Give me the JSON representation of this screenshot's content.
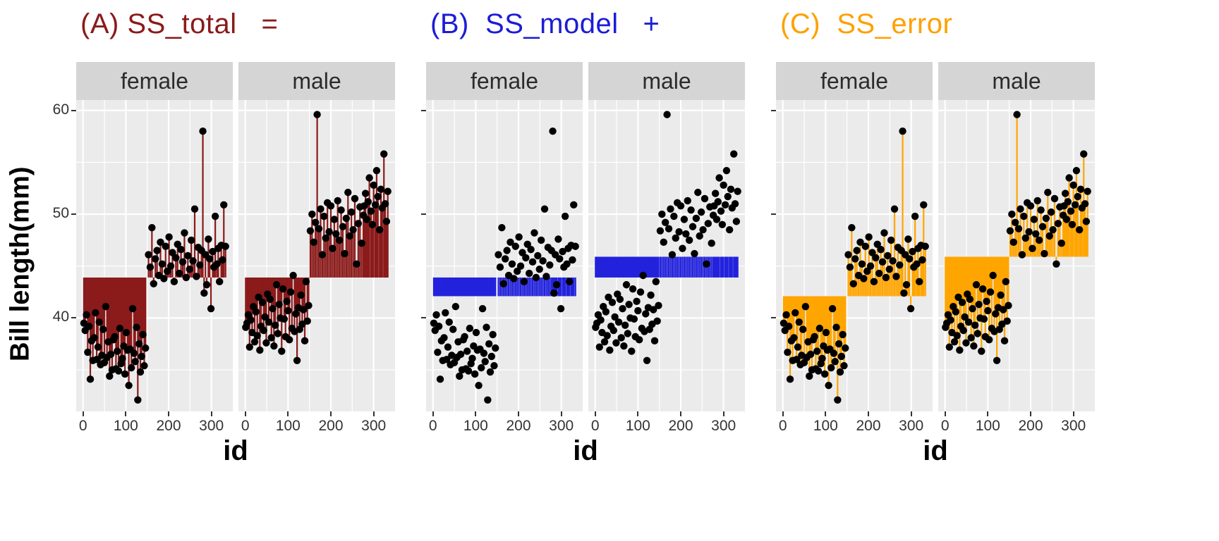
{
  "charts": [
    {
      "id": "A",
      "title": "(A) SS_total   =",
      "title_color": "#8B1A1A",
      "segment_color": "#8B1A1A",
      "baseline": "grand",
      "target": "point"
    },
    {
      "id": "B",
      "title": "(B)  SS_model   +",
      "title_color": "#1C1CD6",
      "segment_color": "#2222DD",
      "baseline": "grand",
      "target": "group"
    },
    {
      "id": "C",
      "title": "(C)  SS_error",
      "title_color": "#FFA000",
      "segment_color": "#FFA500",
      "baseline": "group",
      "target": "point"
    }
  ],
  "chart_data": {
    "type": "scatter",
    "title": "SS_total = SS_model + SS_error",
    "xlabel": "id",
    "ylabel": "Bill length(mm)",
    "facets": [
      "female",
      "male"
    ],
    "x_domain": [
      -16,
      350
    ],
    "y_domain": [
      31,
      61
    ],
    "x_ticks": [
      0,
      100,
      200,
      300
    ],
    "y_ticks": [
      60,
      50,
      40
    ],
    "x_minor": [
      50,
      150,
      250
    ],
    "y_minor": [
      35,
      45,
      55
    ],
    "grand_mean": 43.9,
    "group_means": {
      "female": 42.1,
      "male": 45.9
    },
    "legend": "none",
    "grid": true,
    "panel_background": "#EBEBEB",
    "gridline_color": "#FFFFFF",
    "point_color": "#000000",
    "points": {
      "female": [
        [
          2,
          39.5
        ],
        [
          5,
          38.8
        ],
        [
          8,
          40.3
        ],
        [
          11,
          36.7
        ],
        [
          14,
          39.2
        ],
        [
          17,
          34.1
        ],
        [
          20,
          37.8
        ],
        [
          23,
          35.9
        ],
        [
          26,
          38.1
        ],
        [
          29,
          40.5
        ],
        [
          32,
          36.0
        ],
        [
          35,
          37.2
        ],
        [
          38,
          39.6
        ],
        [
          41,
          35.5
        ],
        [
          44,
          36.4
        ],
        [
          47,
          38.9
        ],
        [
          50,
          35.7
        ],
        [
          53,
          41.1
        ],
        [
          56,
          36.2
        ],
        [
          59,
          37.7
        ],
        [
          62,
          34.4
        ],
        [
          65,
          36.5
        ],
        [
          68,
          35.0
        ],
        [
          71,
          37.9
        ],
        [
          74,
          38.2
        ],
        [
          77,
          35.1
        ],
        [
          80,
          36.8
        ],
        [
          83,
          34.9
        ],
        [
          86,
          39.0
        ],
        [
          89,
          35.6
        ],
        [
          92,
          36.1
        ],
        [
          95,
          37.3
        ],
        [
          98,
          34.6
        ],
        [
          101,
          38.6
        ],
        [
          104,
          36.9
        ],
        [
          107,
          33.5
        ],
        [
          110,
          37.0
        ],
        [
          113,
          35.2
        ],
        [
          116,
          40.9
        ],
        [
          119,
          36.6
        ],
        [
          122,
          35.8
        ],
        [
          125,
          39.1
        ],
        [
          128,
          32.1
        ],
        [
          131,
          37.5
        ],
        [
          134,
          34.8
        ],
        [
          137,
          36.3
        ],
        [
          140,
          38.4
        ],
        [
          143,
          35.4
        ],
        [
          146,
          37.1
        ],
        [
          153,
          46.1
        ],
        [
          157,
          44.9
        ],
        [
          161,
          48.7
        ],
        [
          165,
          43.3
        ],
        [
          169,
          45.7
        ],
        [
          173,
          46.5
        ],
        [
          177,
          44.1
        ],
        [
          181,
          47.3
        ],
        [
          185,
          45.2
        ],
        [
          189,
          43.8
        ],
        [
          193,
          46.9
        ],
        [
          197,
          44.5
        ],
        [
          201,
          47.8
        ],
        [
          205,
          45.0
        ],
        [
          209,
          46.3
        ],
        [
          213,
          43.5
        ],
        [
          217,
          45.8
        ],
        [
          221,
          47.1
        ],
        [
          225,
          44.3
        ],
        [
          229,
          46.6
        ],
        [
          233,
          45.4
        ],
        [
          237,
          48.2
        ],
        [
          241,
          43.9
        ],
        [
          245,
          46.0
        ],
        [
          249,
          44.7
        ],
        [
          253,
          47.5
        ],
        [
          257,
          45.5
        ],
        [
          261,
          50.5
        ],
        [
          265,
          44.0
        ],
        [
          269,
          46.8
        ],
        [
          273,
          45.1
        ],
        [
          277,
          46.5
        ],
        [
          280,
          58.0
        ],
        [
          283,
          42.4
        ],
        [
          286,
          46.1
        ],
        [
          289,
          43.2
        ],
        [
          293,
          47.6
        ],
        [
          296,
          45.7
        ],
        [
          299,
          40.9
        ],
        [
          303,
          46.4
        ],
        [
          306,
          44.9
        ],
        [
          309,
          49.8
        ],
        [
          313,
          45.2
        ],
        [
          316,
          46.7
        ],
        [
          319,
          43.5
        ],
        [
          323,
          47.0
        ],
        [
          326,
          45.6
        ],
        [
          329,
          50.9
        ],
        [
          333,
          46.9
        ]
      ],
      "male": [
        [
          1,
          39.1
        ],
        [
          4,
          39.5
        ],
        [
          7,
          40.3
        ],
        [
          10,
          37.2
        ],
        [
          13,
          39.8
        ],
        [
          16,
          38.6
        ],
        [
          19,
          41.1
        ],
        [
          22,
          37.7
        ],
        [
          25,
          40.6
        ],
        [
          28,
          38.3
        ],
        [
          31,
          42.0
        ],
        [
          34,
          36.9
        ],
        [
          37,
          39.2
        ],
        [
          40,
          41.5
        ],
        [
          43,
          38.8
        ],
        [
          46,
          40.1
        ],
        [
          49,
          37.6
        ],
        [
          52,
          42.3
        ],
        [
          55,
          39.6
        ],
        [
          58,
          41.8
        ],
        [
          61,
          38.1
        ],
        [
          64,
          40.9
        ],
        [
          67,
          37.3
        ],
        [
          70,
          39.3
        ],
        [
          73,
          43.2
        ],
        [
          76,
          38.5
        ],
        [
          79,
          41.3
        ],
        [
          82,
          40.0
        ],
        [
          85,
          36.8
        ],
        [
          88,
          42.8
        ],
        [
          91,
          39.9
        ],
        [
          94,
          38.2
        ],
        [
          97,
          41.6
        ],
        [
          100,
          40.7
        ],
        [
          103,
          37.9
        ],
        [
          106,
          42.5
        ],
        [
          109,
          39.0
        ],
        [
          112,
          44.1
        ],
        [
          115,
          38.7
        ],
        [
          118,
          40.4
        ],
        [
          121,
          35.9
        ],
        [
          124,
          41.0
        ],
        [
          127,
          38.9
        ],
        [
          130,
          42.2
        ],
        [
          133,
          39.4
        ],
        [
          136,
          40.8
        ],
        [
          139,
          37.8
        ],
        [
          142,
          43.5
        ],
        [
          145,
          39.7
        ],
        [
          148,
          41.2
        ],
        [
          152,
          48.4
        ],
        [
          156,
          50.0
        ],
        [
          160,
          47.3
        ],
        [
          164,
          49.2
        ],
        [
          168,
          59.6
        ],
        [
          172,
          48.6
        ],
        [
          176,
          50.5
        ],
        [
          180,
          46.1
        ],
        [
          184,
          49.8
        ],
        [
          188,
          47.7
        ],
        [
          192,
          51.1
        ],
        [
          196,
          48.3
        ],
        [
          200,
          50.8
        ],
        [
          204,
          46.7
        ],
        [
          208,
          49.5
        ],
        [
          212,
          48.1
        ],
        [
          216,
          51.3
        ],
        [
          220,
          47.5
        ],
        [
          224,
          50.4
        ],
        [
          228,
          48.8
        ],
        [
          232,
          46.2
        ],
        [
          236,
          49.6
        ],
        [
          240,
          52.1
        ],
        [
          244,
          47.9
        ],
        [
          248,
          50.2
        ],
        [
          252,
          48.5
        ],
        [
          256,
          51.5
        ],
        [
          260,
          45.2
        ],
        [
          264,
          49.1
        ],
        [
          268,
          50.7
        ],
        [
          272,
          47.2
        ],
        [
          276,
          49.9
        ],
        [
          278,
          50.8
        ],
        [
          281,
          52.0
        ],
        [
          284,
          49.5
        ],
        [
          287,
          51.2
        ],
        [
          290,
          53.5
        ],
        [
          294,
          50.3
        ],
        [
          297,
          49.0
        ],
        [
          300,
          52.8
        ],
        [
          304,
          50.9
        ],
        [
          307,
          54.2
        ],
        [
          310,
          51.7
        ],
        [
          314,
          48.5
        ],
        [
          317,
          52.4
        ],
        [
          320,
          50.6
        ],
        [
          324,
          55.8
        ],
        [
          327,
          51.0
        ],
        [
          330,
          49.3
        ],
        [
          333,
          52.2
        ]
      ]
    }
  }
}
